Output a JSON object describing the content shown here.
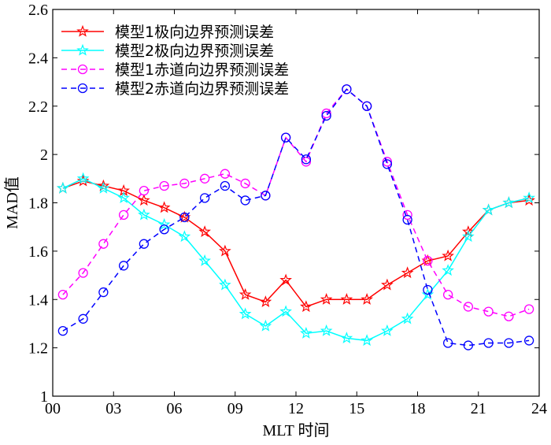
{
  "chart_data": {
    "type": "line",
    "xlabel": "MLT 时间",
    "ylabel": "MAD值",
    "xlim": [
      0,
      24
    ],
    "ylim": [
      1,
      2.6
    ],
    "x_ticks": [
      0,
      3,
      6,
      9,
      12,
      15,
      18,
      21,
      24
    ],
    "x_tick_labels": [
      "00",
      "03",
      "06",
      "09",
      "12",
      "15",
      "18",
      "21",
      "24"
    ],
    "y_ticks": [
      1,
      1.2,
      1.4,
      1.6,
      1.8,
      2,
      2.2,
      2.4,
      2.6
    ],
    "y_tick_labels": [
      "1",
      "1.2",
      "1.4",
      "1.6",
      "1.8",
      "2",
      "2.2",
      "2.4",
      "2.6"
    ],
    "grid": false,
    "legend_position": "top-left",
    "x": [
      0.5,
      1.5,
      2.5,
      3.5,
      4.5,
      5.5,
      6.5,
      7.5,
      8.5,
      9.5,
      10.5,
      11.5,
      12.5,
      13.5,
      14.5,
      15.5,
      16.5,
      17.5,
      18.5,
      19.5,
      20.5,
      21.5,
      22.5,
      23.5
    ],
    "series": [
      {
        "name": "模型1极向边界预测误差",
        "color": "#ff0000",
        "line_style": "solid",
        "marker": "star",
        "values": [
          1.86,
          1.89,
          1.87,
          1.85,
          1.81,
          1.78,
          1.74,
          1.68,
          1.6,
          1.42,
          1.39,
          1.48,
          1.37,
          1.4,
          1.4,
          1.4,
          1.46,
          1.51,
          1.56,
          1.58,
          1.68,
          1.77,
          1.8,
          1.81
        ]
      },
      {
        "name": "模型2极向边界预测误差",
        "color": "#00ffff",
        "line_style": "solid",
        "marker": "star",
        "values": [
          1.86,
          1.9,
          1.86,
          1.82,
          1.75,
          1.71,
          1.66,
          1.56,
          1.46,
          1.34,
          1.29,
          1.35,
          1.26,
          1.27,
          1.24,
          1.23,
          1.27,
          1.32,
          1.42,
          1.52,
          1.66,
          1.77,
          1.8,
          1.82
        ]
      },
      {
        "name": "模型1赤道向边界预测误差",
        "color": "#ff00ff",
        "line_style": "dashed",
        "marker": "circle",
        "values": [
          1.42,
          1.51,
          1.63,
          1.75,
          1.85,
          1.87,
          1.88,
          1.9,
          1.92,
          1.88,
          1.83,
          2.07,
          1.97,
          2.17,
          2.27,
          2.2,
          1.97,
          1.75,
          1.56,
          1.42,
          1.37,
          1.35,
          1.33,
          1.36
        ]
      },
      {
        "name": "模型2赤道向边界预测误差",
        "color": "#0000ff",
        "line_style": "dashed",
        "marker": "circle",
        "values": [
          1.27,
          1.32,
          1.43,
          1.54,
          1.63,
          1.69,
          1.74,
          1.82,
          1.87,
          1.81,
          1.83,
          2.07,
          1.98,
          2.16,
          2.27,
          2.2,
          1.96,
          1.73,
          1.44,
          1.22,
          1.21,
          1.22,
          1.22,
          1.23
        ]
      }
    ]
  }
}
